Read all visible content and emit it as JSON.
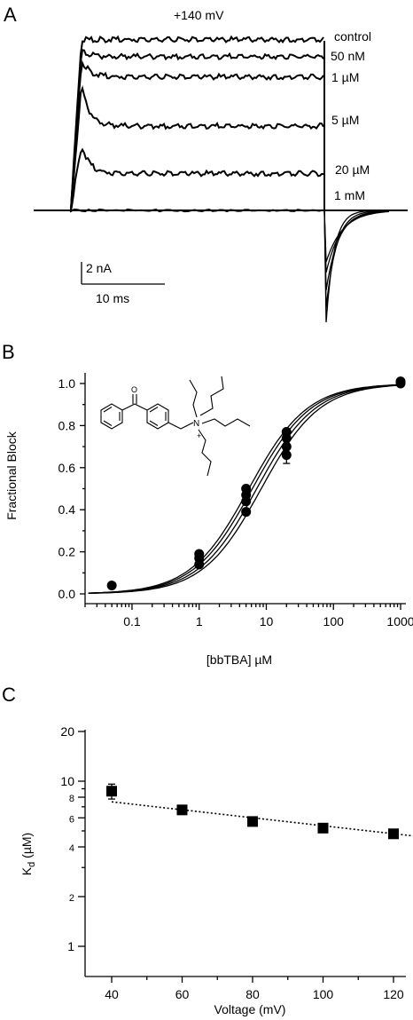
{
  "chart_data": [
    {
      "panel": "A",
      "type": "line",
      "voltage_label": "+140 mV",
      "traces": [
        {
          "name": "control",
          "peak": 1.0,
          "steady": 1.0
        },
        {
          "name": "50 nM",
          "peak": 0.93,
          "steady": 0.9
        },
        {
          "name": "1 µM",
          "peak": 0.88,
          "steady": 0.78
        },
        {
          "name": "5 µM",
          "peak": 0.73,
          "steady": 0.49
        },
        {
          "name": "20 µM",
          "peak": 0.38,
          "steady": 0.21
        },
        {
          "name": "1 mM",
          "peak": 0.0,
          "steady": 0.0
        }
      ],
      "scale_bar": {
        "current": "2 nA",
        "time": "10 ms"
      }
    },
    {
      "panel": "B",
      "type": "scatter",
      "xlabel": "[bbTBA]   µM",
      "ylabel": "Fractional Block",
      "xscale": "log",
      "xlim": [
        0.02,
        1200
      ],
      "ylim": [
        0.0,
        1.0
      ],
      "xticks": [
        "0.1",
        "1",
        "10",
        "100",
        "1000"
      ],
      "yticks": [
        "0.0",
        "0.2",
        "0.4",
        "0.6",
        "0.8",
        "1.0"
      ],
      "points": [
        {
          "x": 0.05,
          "y": 0.04
        },
        {
          "x": 1,
          "y": 0.14
        },
        {
          "x": 1,
          "y": 0.17
        },
        {
          "x": 1,
          "y": 0.19
        },
        {
          "x": 5,
          "y": 0.39
        },
        {
          "x": 5,
          "y": 0.44
        },
        {
          "x": 5,
          "y": 0.47
        },
        {
          "x": 5,
          "y": 0.5
        },
        {
          "x": 20,
          "y": 0.66
        },
        {
          "x": 20,
          "y": 0.7
        },
        {
          "x": 20,
          "y": 0.74
        },
        {
          "x": 20,
          "y": 0.77
        },
        {
          "x": 1000,
          "y": 1.0
        },
        {
          "x": 1000,
          "y": 1.01
        }
      ],
      "fits_kd": [
        5.5,
        6.2,
        7.2,
        8.4
      ],
      "inset": "chemical structure of bbTBA"
    },
    {
      "panel": "C",
      "type": "scatter",
      "xlabel": "Voltage (mV)",
      "ylabel_main": "K",
      "ylabel_sub": "d",
      "ylabel_unit": " (µM)",
      "yscale": "log",
      "xlim": [
        33,
        126
      ],
      "ylim": [
        0.9,
        20
      ],
      "xticks": [
        "40",
        "60",
        "80",
        "100",
        "120"
      ],
      "yticks": [
        "1",
        "2",
        "4",
        "6",
        "8",
        "10",
        "20"
      ],
      "points": [
        {
          "x": 40,
          "y": 8.7,
          "err": 0.9
        },
        {
          "x": 60,
          "y": 6.7
        },
        {
          "x": 80,
          "y": 5.7
        },
        {
          "x": 100,
          "y": 5.2
        },
        {
          "x": 120,
          "y": 4.8
        }
      ],
      "fit": {
        "x": [
          40,
          126
        ],
        "y": [
          7.5,
          4.65
        ],
        "style": "dotted"
      }
    }
  ]
}
